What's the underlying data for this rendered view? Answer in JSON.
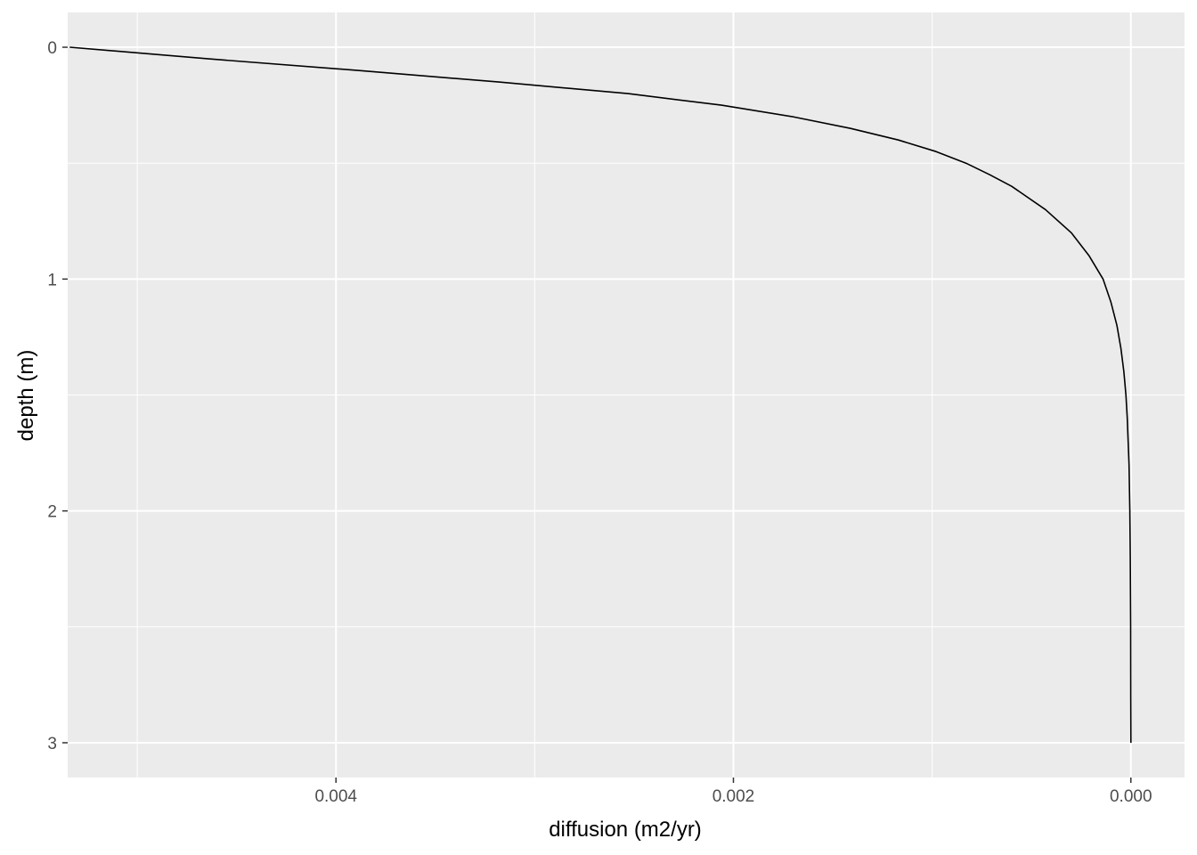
{
  "chart_data": {
    "type": "line",
    "xlabel": "diffusion (m2/yr)",
    "ylabel": "depth (m)",
    "x_reversed": true,
    "y_reversed": true,
    "xlim": [
      0.00535,
      -0.00027
    ],
    "ylim": [
      -0.15,
      3.15
    ],
    "x_ticks": [
      {
        "value": 0.004,
        "label": "0.004"
      },
      {
        "value": 0.002,
        "label": "0.002"
      },
      {
        "value": 0.0,
        "label": "0.000"
      }
    ],
    "y_ticks": [
      {
        "value": 0,
        "label": "0"
      },
      {
        "value": 1,
        "label": "1"
      },
      {
        "value": 2,
        "label": "2"
      },
      {
        "value": 3,
        "label": "3"
      }
    ],
    "grid": true,
    "series": [
      {
        "color": "#000000",
        "points": [
          {
            "depth": 0.0,
            "diffusion": 0.00534
          },
          {
            "depth": 0.05,
            "diffusion": 0.00464
          },
          {
            "depth": 0.1,
            "diffusion": 0.00389
          },
          {
            "depth": 0.15,
            "diffusion": 0.00318
          },
          {
            "depth": 0.2,
            "diffusion": 0.00253
          },
          {
            "depth": 0.25,
            "diffusion": 0.00206
          },
          {
            "depth": 0.3,
            "diffusion": 0.0017
          },
          {
            "depth": 0.35,
            "diffusion": 0.00141
          },
          {
            "depth": 0.4,
            "diffusion": 0.00117
          },
          {
            "depth": 0.45,
            "diffusion": 0.00098
          },
          {
            "depth": 0.5,
            "diffusion": 0.00083
          },
          {
            "depth": 0.55,
            "diffusion": 0.00071
          },
          {
            "depth": 0.6,
            "diffusion": 0.0006
          },
          {
            "depth": 0.7,
            "diffusion": 0.00043
          },
          {
            "depth": 0.8,
            "diffusion": 0.0003
          },
          {
            "depth": 0.9,
            "diffusion": 0.00021
          },
          {
            "depth": 1.0,
            "diffusion": 0.00014
          },
          {
            "depth": 1.1,
            "diffusion": 0.0001
          },
          {
            "depth": 1.2,
            "diffusion": 7e-05
          },
          {
            "depth": 1.3,
            "diffusion": 5e-05
          },
          {
            "depth": 1.4,
            "diffusion": 3.5e-05
          },
          {
            "depth": 1.5,
            "diffusion": 2.5e-05
          },
          {
            "depth": 1.6,
            "diffusion": 1.8e-05
          },
          {
            "depth": 1.8,
            "diffusion": 9e-06
          },
          {
            "depth": 2.0,
            "diffusion": 5e-06
          },
          {
            "depth": 2.2,
            "diffusion": 3e-06
          },
          {
            "depth": 2.5,
            "diffusion": 1e-06
          },
          {
            "depth": 2.8,
            "diffusion": 5e-07
          },
          {
            "depth": 3.0,
            "diffusion": 0.0
          }
        ]
      }
    ]
  }
}
